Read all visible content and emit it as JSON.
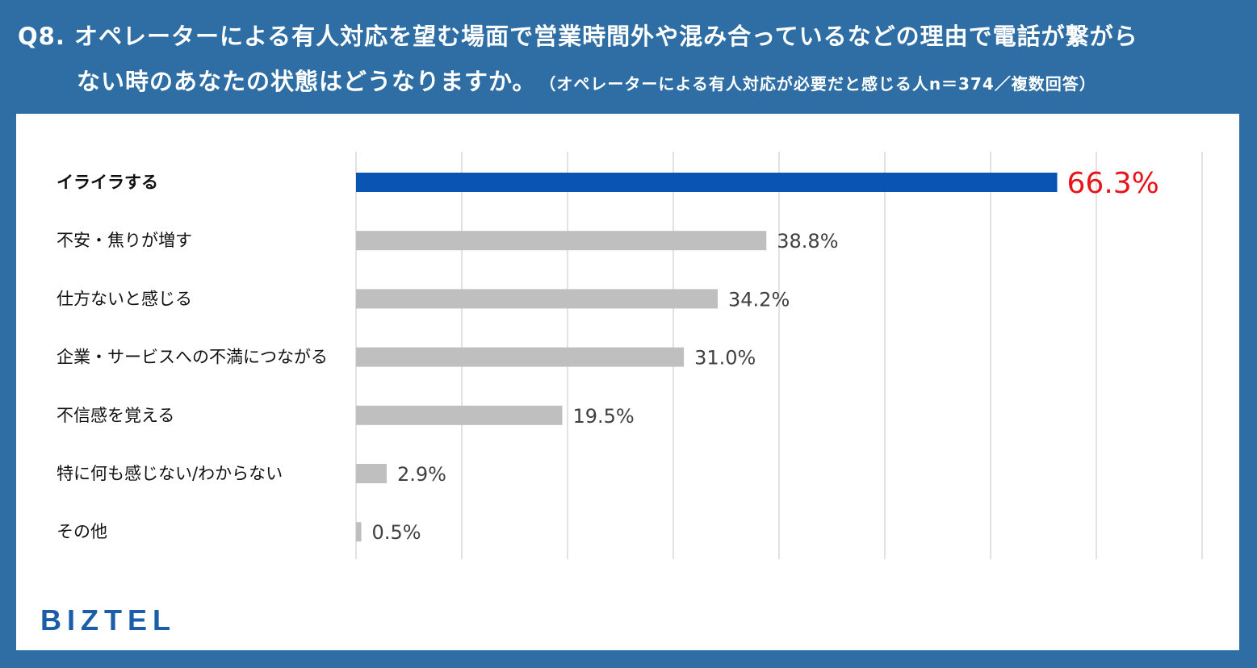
{
  "header": {
    "line1": "Q8. オペレーターによる有人対応を望む場面で営業時間外や混み合っているなどの理由で電話が繋がら",
    "line2": "ない時のあなたの状態はどうなりますか。",
    "note": "（オペレーターによる有人対応が必要だと感じる人n＝374／複数回答）"
  },
  "logo": "BIZTEL",
  "colors": {
    "background": "#2e6ea4",
    "highlight_bar": "#0a55b3",
    "default_bar": "#bfbfbf",
    "highlight_value": "#e8141a",
    "logo": "#1b5da8"
  },
  "chart_data": {
    "type": "bar",
    "orientation": "horizontal",
    "categories": [
      "イライラする",
      "不安・焦りが増す",
      "仕方ないと感じる",
      "企業・サービスへの不満につながる",
      "不信感を覚える",
      "特に何も感じない/わからない",
      "その他"
    ],
    "values": [
      66.3,
      38.8,
      34.2,
      31.0,
      19.5,
      2.9,
      0.5
    ],
    "value_labels": [
      "66.3%",
      "38.8%",
      "34.2%",
      "31.0%",
      "19.5%",
      "2.9%",
      "0.5%"
    ],
    "highlight_index": 0,
    "xlim": [
      0,
      80
    ],
    "grid": true,
    "unit": "%"
  }
}
